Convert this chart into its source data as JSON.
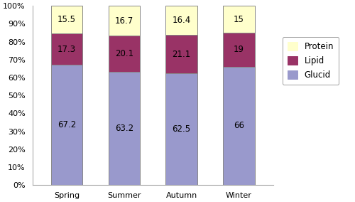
{
  "categories": [
    "Spring",
    "Summer",
    "Autumn",
    "Winter"
  ],
  "glucid": [
    67.2,
    63.2,
    62.5,
    66
  ],
  "lipid": [
    17.3,
    20.1,
    21.1,
    19
  ],
  "protein": [
    15.5,
    16.7,
    16.4,
    15
  ],
  "glucid_color": "#9999cc",
  "lipid_color": "#993366",
  "protein_color": "#ffffcc",
  "glucid_label": "Glucid",
  "lipid_label": "Lipid",
  "protein_label": "Protein",
  "bar_width": 0.55,
  "ylim": [
    0,
    100
  ],
  "yticks": [
    0,
    10,
    20,
    30,
    40,
    50,
    60,
    70,
    80,
    90,
    100
  ],
  "ytick_labels": [
    "0%",
    "10%",
    "20%",
    "30%",
    "40%",
    "50%",
    "60%",
    "70%",
    "80%",
    "90%",
    "100%"
  ],
  "legend_fontsize": 8.5,
  "label_fontsize": 8.5,
  "tick_fontsize": 8,
  "edgecolor": "#888888",
  "spine_color": "#aaaaaa"
}
